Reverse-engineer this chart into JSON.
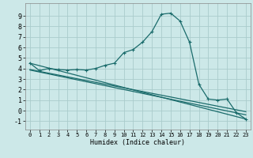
{
  "xlabel": "Humidex (Indice chaleur)",
  "bg_color": "#cce8e8",
  "grid_color": "#aacccc",
  "line_color": "#1a6b6b",
  "xlim": [
    -0.5,
    23.5
  ],
  "ylim": [
    -1.8,
    10.2
  ],
  "xticks": [
    0,
    1,
    2,
    3,
    4,
    5,
    6,
    7,
    8,
    9,
    10,
    11,
    12,
    13,
    14,
    15,
    16,
    17,
    18,
    19,
    20,
    21,
    22,
    23
  ],
  "yticks": [
    -1,
    0,
    1,
    2,
    3,
    4,
    5,
    6,
    7,
    8,
    9
  ],
  "series": {
    "main": [
      [
        0,
        4.5
      ],
      [
        1,
        3.8
      ],
      [
        2,
        4.0
      ],
      [
        3,
        3.9
      ],
      [
        4,
        3.85
      ],
      [
        5,
        3.9
      ],
      [
        6,
        3.85
      ],
      [
        7,
        4.0
      ],
      [
        8,
        4.3
      ],
      [
        9,
        4.5
      ],
      [
        10,
        5.5
      ],
      [
        11,
        5.8
      ],
      [
        12,
        6.5
      ],
      [
        13,
        7.5
      ],
      [
        14,
        9.15
      ],
      [
        15,
        9.25
      ],
      [
        16,
        8.5
      ],
      [
        17,
        6.5
      ],
      [
        18,
        2.5
      ],
      [
        19,
        1.1
      ],
      [
        20,
        1.0
      ],
      [
        21,
        1.1
      ],
      [
        22,
        -0.2
      ],
      [
        23,
        -0.8
      ]
    ],
    "line1": [
      [
        0,
        4.5
      ],
      [
        23,
        -0.8
      ]
    ],
    "line2": [
      [
        0,
        3.9
      ],
      [
        23,
        -0.1
      ]
    ],
    "line3": [
      [
        0,
        3.85
      ],
      [
        23,
        -0.4
      ]
    ]
  }
}
